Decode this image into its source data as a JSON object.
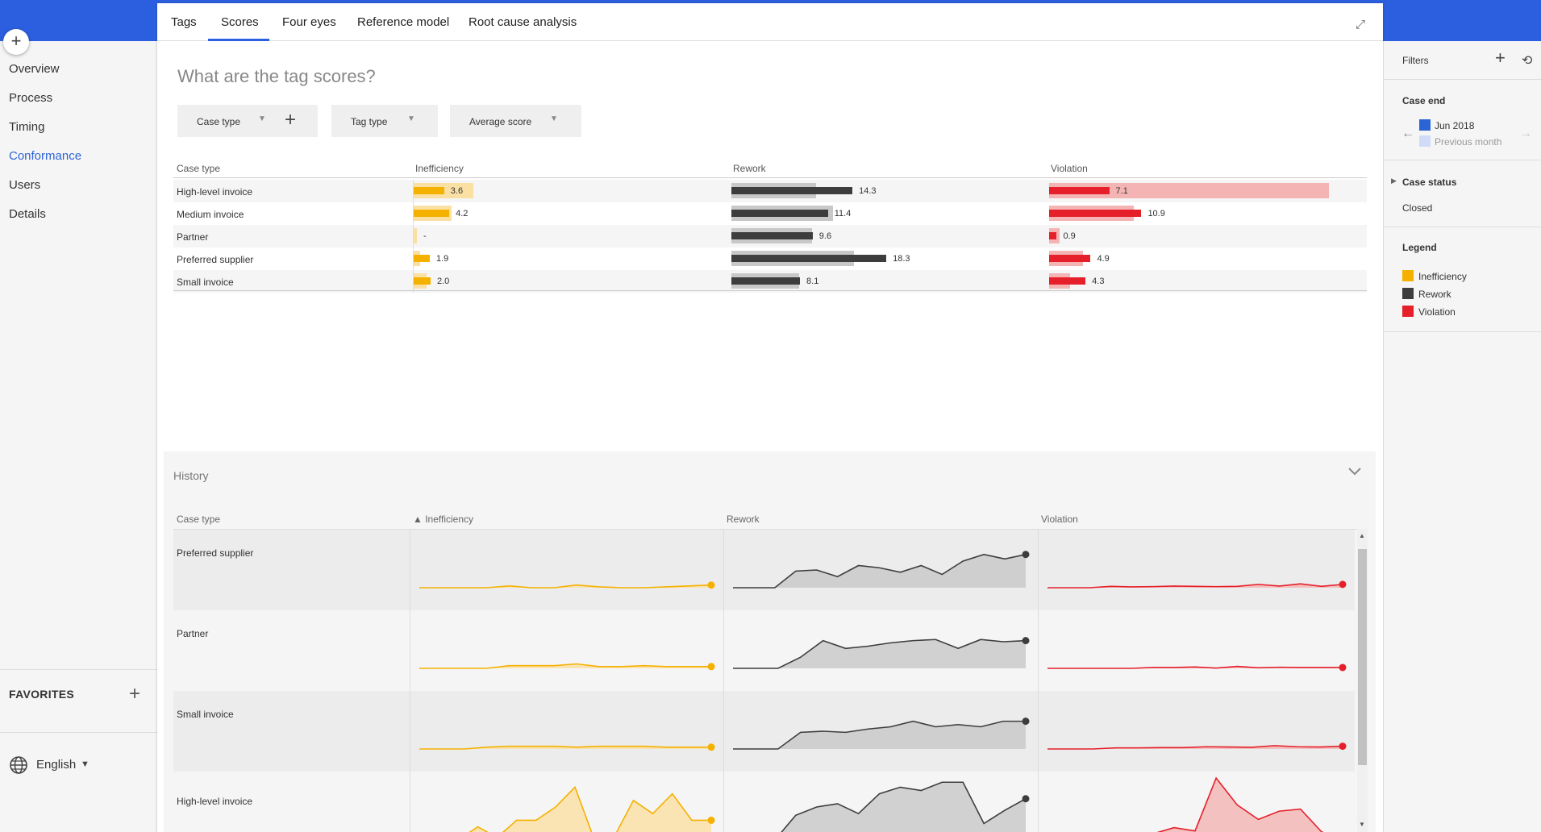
{
  "nav": {
    "add": "+",
    "items": [
      "Overview",
      "Process",
      "Timing",
      "Conformance",
      "Users",
      "Details"
    ],
    "active_index": 3,
    "favorites": "FAVORITES",
    "favorites_add": "+",
    "language": "English"
  },
  "tabs": [
    "Tags",
    "Scores",
    "Four eyes",
    "Reference model",
    "Root cause analysis"
  ],
  "active_tab": "Scores",
  "question": "What are the tag scores?",
  "dropdowns": {
    "case_type": "Case type",
    "tag_type": "Tag type",
    "average_score": "Average score",
    "add": "+"
  },
  "scores": {
    "headers": [
      "Case type",
      "Inefficiency",
      "Rework",
      "Violation"
    ],
    "rows": [
      {
        "label": "High-level invoice",
        "inefficiency": {
          "value": "3.6",
          "bar": 3.6,
          "bg": 7.0
        },
        "rework": {
          "value": "14.3",
          "bar": 14.3,
          "bg": 10.0
        },
        "violation": {
          "value": "7.1",
          "bar": 7.1,
          "bg": 33.0
        }
      },
      {
        "label": "Medium invoice",
        "inefficiency": {
          "value": "4.2",
          "bar": 4.2,
          "bg": 4.5
        },
        "rework": {
          "value": "11.4",
          "bar": 11.4,
          "bg": 12.0
        },
        "violation": {
          "value": "10.9",
          "bar": 10.9,
          "bg": 10.0
        }
      },
      {
        "label": "Partner",
        "inefficiency": {
          "value": "-",
          "bar": 0,
          "bg": 0.4
        },
        "rework": {
          "value": "9.6",
          "bar": 9.6,
          "bg": 9.5
        },
        "violation": {
          "value": "0.9",
          "bar": 0.9,
          "bg": 1.2
        }
      },
      {
        "label": "Preferred supplier",
        "inefficiency": {
          "value": "1.9",
          "bar": 1.9,
          "bg": 0.8
        },
        "rework": {
          "value": "18.3",
          "bar": 18.3,
          "bg": 14.5
        },
        "violation": {
          "value": "4.9",
          "bar": 4.9,
          "bg": 4.0
        }
      },
      {
        "label": "Small invoice",
        "inefficiency": {
          "value": "2.0",
          "bar": 2.0,
          "bg": 1.5
        },
        "rework": {
          "value": "8.1",
          "bar": 8.1,
          "bg": 8.0
        },
        "violation": {
          "value": "4.3",
          "bar": 4.3,
          "bg": 2.5
        }
      }
    ]
  },
  "history": {
    "title": "History",
    "headers": [
      "Case type",
      "▲ Inefficiency",
      "Rework",
      "Violation"
    ],
    "rows": [
      {
        "label": "Preferred supplier",
        "ineff": [
          0,
          0,
          0,
          0,
          0.2,
          0,
          0,
          0.3,
          0.1,
          0,
          0,
          0.1,
          0.2,
          0.3
        ],
        "rework": [
          0,
          0,
          0,
          1.5,
          1.6,
          1,
          2,
          1.8,
          1.4,
          2,
          1.2,
          2.4,
          3,
          2.6,
          3
        ],
        "violation": [
          0,
          0,
          0,
          0.5,
          0.3,
          0.4,
          0.6,
          0.5,
          0.4,
          0.5,
          1.2,
          0.6,
          1.4,
          0.5,
          1.2
        ]
      },
      {
        "label": "Partner",
        "ineff": [
          0,
          0,
          0,
          0,
          0.3,
          0.3,
          0.3,
          0.5,
          0.2,
          0.2,
          0.3,
          0.2,
          0.2,
          0.2
        ],
        "rework": [
          0,
          0,
          0,
          1,
          2.5,
          1.8,
          2,
          2.3,
          2.5,
          2.6,
          1.8,
          2.6,
          2.4,
          2.5
        ],
        "violation": [
          0,
          0,
          0,
          0,
          0,
          0.3,
          0.3,
          0.5,
          0.1,
          0.7,
          0.2,
          0.4,
          0.3,
          0.3,
          0.3
        ]
      },
      {
        "label": "Small invoice",
        "ineff": [
          0,
          0,
          0,
          0.2,
          0.3,
          0.3,
          0.3,
          0.2,
          0.3,
          0.3,
          0.3,
          0.2,
          0.2,
          0.2
        ],
        "rework": [
          0,
          0,
          0,
          1.5,
          1.6,
          1.5,
          1.8,
          2,
          2.5,
          2,
          2.2,
          2,
          2.5,
          2.5
        ],
        "violation": [
          0,
          0,
          0,
          0.4,
          0.4,
          0.5,
          0.5,
          0.8,
          0.7,
          0.6,
          1.2,
          0.8,
          0.7,
          1
        ]
      },
      {
        "label": "High-level invoice",
        "ineff": [
          0,
          0,
          0,
          1,
          0.2,
          1.5,
          1.5,
          2.5,
          4,
          0,
          0.2,
          3,
          2,
          3.5,
          1.5,
          1.5
        ],
        "rework": [
          0,
          0,
          0,
          1.5,
          2,
          2.2,
          1.6,
          2.8,
          3.2,
          3,
          3.5,
          3.5,
          1,
          1.8,
          2.5
        ],
        "violation": [
          0,
          0,
          0,
          0.5,
          0,
          1.5,
          3,
          2.2,
          15,
          8.5,
          5,
          7,
          7.5,
          2,
          0
        ]
      }
    ]
  },
  "filters": {
    "title": "Filters",
    "add": "+",
    "reset": "⟲",
    "case_end": "Case end",
    "period": "Jun 2018",
    "previous": "Previous month",
    "case_status": "Case status",
    "status_value": "Closed",
    "legend_title": "Legend",
    "legend": [
      {
        "label": "Inefficiency",
        "color": "#f5b100"
      },
      {
        "label": "Rework",
        "color": "#3d3d3d"
      },
      {
        "label": "Violation",
        "color": "#e5202a"
      }
    ]
  },
  "colors": {
    "inefficiency": "#f5b100",
    "inefficiency_bg": "#fbe0a3",
    "rework": "#3d3d3d",
    "rework_bg": "#c8c8c8",
    "violation": "#e5202a",
    "violation_bg": "#f4b4b4",
    "accent": "#2c5fe0"
  }
}
